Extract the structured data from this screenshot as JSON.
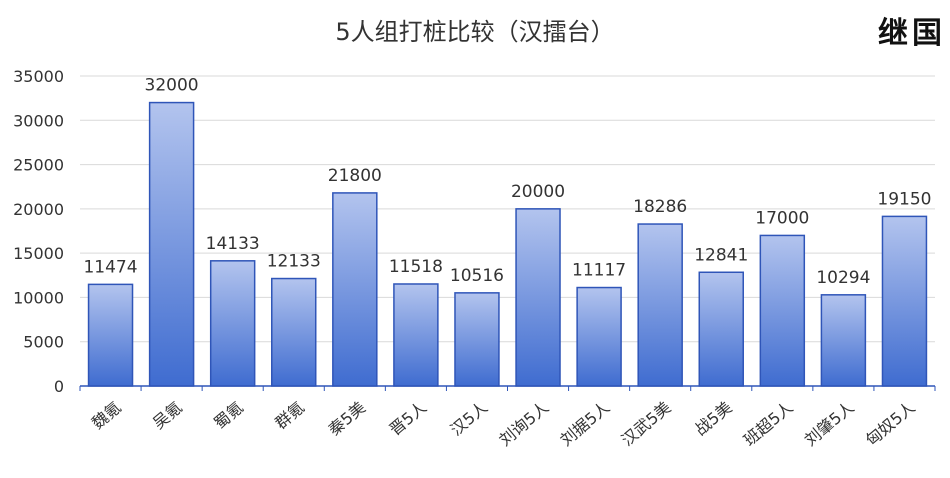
{
  "logo_text": "继国",
  "chart_data": {
    "type": "bar",
    "title": "5人组打桩比较（汉擂台）",
    "xlabel": "",
    "ylabel": "",
    "ylim": [
      0,
      35000
    ],
    "yticks": [
      0,
      5000,
      10000,
      15000,
      20000,
      25000,
      30000,
      35000
    ],
    "grid": true,
    "categories": [
      "魏氪",
      "吴氪",
      "蜀氪",
      "群氪",
      "秦5美",
      "晋5人",
      "汉5人",
      "刘询5人",
      "刘据5人",
      "汉武5美",
      "战5美",
      "班超5人",
      "刘肇5人",
      "匈奴5人"
    ],
    "values": [
      11474,
      32000,
      14133,
      12133,
      21800,
      11518,
      10516,
      20000,
      11117,
      18286,
      12841,
      17000,
      10294,
      19150
    ],
    "colors": {
      "bar_top": "#b3c4ee",
      "bar_bottom": "#3f6cd0",
      "bar_stroke": "#2f55b8",
      "grid": "#d9d9d9",
      "axis": "#2f55b8",
      "text": "#333333"
    }
  }
}
